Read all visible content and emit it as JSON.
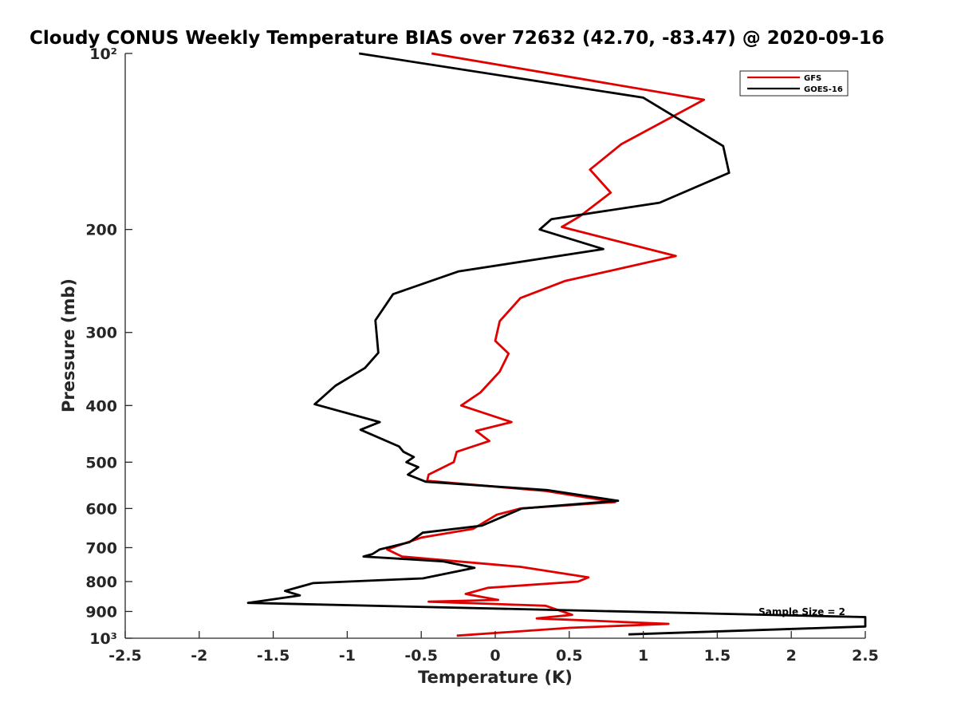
{
  "chart_data": {
    "type": "line",
    "title": "Cloudy CONUS Weekly Temperature BIAS over 72632 (42.70, -83.47) @ 2020-09-16",
    "xlabel": "Temperature (K)",
    "ylabel": "Pressure (mb)",
    "xlim": [
      -2.5,
      2.5
    ],
    "ylim": [
      100,
      1000
    ],
    "y_scale": "log",
    "y_reversed": true,
    "grid": false,
    "legend_position": "top-right",
    "x_ticks": [
      -2.5,
      -2,
      -1.5,
      -1,
      -0.5,
      0,
      0.5,
      1,
      1.5,
      2,
      2.5
    ],
    "x_tick_labels": [
      "-2.5",
      "-2",
      "-1.5",
      "-1",
      "-0.5",
      "0",
      "0.5",
      "1",
      "1.5",
      "2",
      "2.5"
    ],
    "y_ticks": [
      100,
      200,
      300,
      400,
      500,
      600,
      700,
      800,
      900,
      1000
    ],
    "y_tick_labels": [
      "10²",
      "200",
      "300",
      "400",
      "500",
      "600",
      "700",
      "800",
      "900",
      "10³"
    ],
    "annotation": "Sample Size = 2",
    "series": [
      {
        "name": "GFS",
        "color": "#e00000",
        "x": [
          -0.43,
          1.41,
          0.85,
          0.64,
          0.78,
          0.57,
          0.45,
          1.22,
          0.47,
          0.17,
          0.03,
          0,
          0.09,
          0.03,
          -0.1,
          -0.23,
          0.11,
          -0.13,
          -0.04,
          -0.26,
          -0.28,
          -0.45,
          -0.46,
          0.34,
          0.81,
          0.17,
          0.01,
          -0.15,
          -0.5,
          -0.73,
          -0.63,
          0.17,
          0.63,
          0.56,
          -0.05,
          -0.2,
          0.02,
          -0.45,
          0.34,
          0.52,
          0.28,
          1.17,
          0.5,
          -0.26
        ],
        "y": [
          100,
          120,
          143,
          158,
          173,
          190,
          198,
          222,
          245,
          262,
          287,
          310,
          326,
          350,
          380,
          400,
          427,
          442,
          460,
          480,
          500,
          525,
          538,
          560,
          585,
          600,
          615,
          650,
          673,
          705,
          725,
          755,
          787,
          800,
          820,
          840,
          860,
          866,
          880,
          912,
          925,
          945,
          960,
          990
        ]
      },
      {
        "name": "GOES-16",
        "color": "#000000",
        "x": [
          -0.92,
          1.0,
          1.54,
          1.58,
          1.11,
          0.38,
          0.3,
          0.73,
          -0.25,
          -0.69,
          -0.81,
          -0.79,
          -0.88,
          -1.08,
          -1.22,
          -0.78,
          -0.91,
          -0.65,
          -0.62,
          -0.55,
          -0.6,
          -0.52,
          -0.59,
          -0.47,
          0.35,
          0.83,
          0.18,
          -0.09,
          -0.49,
          -0.58,
          -0.78,
          -0.83,
          -0.89,
          -0.35,
          -0.14,
          -0.49,
          -1.23,
          -1.42,
          -1.32,
          -1.67,
          2.5,
          2.5,
          0.9
        ],
        "y": [
          100,
          119,
          144,
          160,
          180,
          192,
          200,
          216,
          236,
          258,
          286,
          325,
          345,
          370,
          398,
          427,
          440,
          470,
          480,
          490,
          500,
          510,
          525,
          540,
          558,
          582,
          600,
          642,
          660,
          685,
          705,
          718,
          725,
          739,
          758,
          790,
          805,
          830,
          845,
          870,
          920,
          955,
          985
        ]
      }
    ]
  }
}
